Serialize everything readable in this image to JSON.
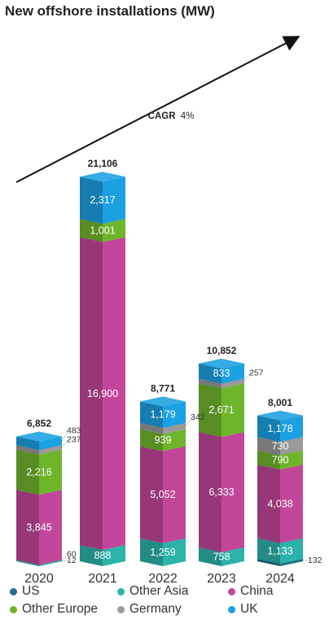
{
  "title": "New offshore installations (MW)",
  "annotation": {
    "label_bold": "CAGR",
    "label_value": "4%"
  },
  "colors": {
    "US": "#1e6f8a",
    "Other Asia": "#2bb3aa",
    "China": "#c2479a",
    "Other Europe": "#6fb52c",
    "Germany": "#9a9a9a",
    "UK": "#1ba0e2"
  },
  "chart_data": {
    "type": "bar",
    "stacked": true,
    "title": "New offshore installations (MW)",
    "categories": [
      "2020",
      "2021",
      "2022",
      "2023",
      "2024"
    ],
    "totals": [
      "6,852",
      "21,106",
      "8,771",
      "10,852",
      "8,001"
    ],
    "series": [
      {
        "name": "US",
        "values": [
          12,
          0,
          0,
          0,
          132
        ]
      },
      {
        "name": "Other Asia",
        "values": [
          60,
          888,
          1259,
          758,
          1133
        ]
      },
      {
        "name": "China",
        "values": [
          3845,
          16900,
          5052,
          6333,
          4038
        ]
      },
      {
        "name": "Other Europe",
        "values": [
          2216,
          1001,
          939,
          2671,
          790
        ]
      },
      {
        "name": "Germany",
        "values": [
          237,
          0,
          342,
          257,
          730
        ]
      },
      {
        "name": "UK",
        "values": [
          483,
          2317,
          1179,
          833,
          1178
        ]
      }
    ],
    "value_labels": [
      [
        "12",
        "",
        "",
        "",
        "132"
      ],
      [
        "60",
        "888",
        "1,259",
        "758",
        "1,133"
      ],
      [
        "3,845",
        "16,900",
        "5,052",
        "6,333",
        "4,038"
      ],
      [
        "2,216",
        "1,001",
        "939",
        "2,671",
        "790"
      ],
      [
        "237",
        "",
        "342",
        "257",
        "730"
      ],
      [
        "483",
        "2,317",
        "1,179",
        "833",
        "1,178"
      ]
    ],
    "legend": [
      "US",
      "Other Asia",
      "China",
      "Other Europe",
      "Germany",
      "UK"
    ],
    "legend_position": "bottom"
  }
}
